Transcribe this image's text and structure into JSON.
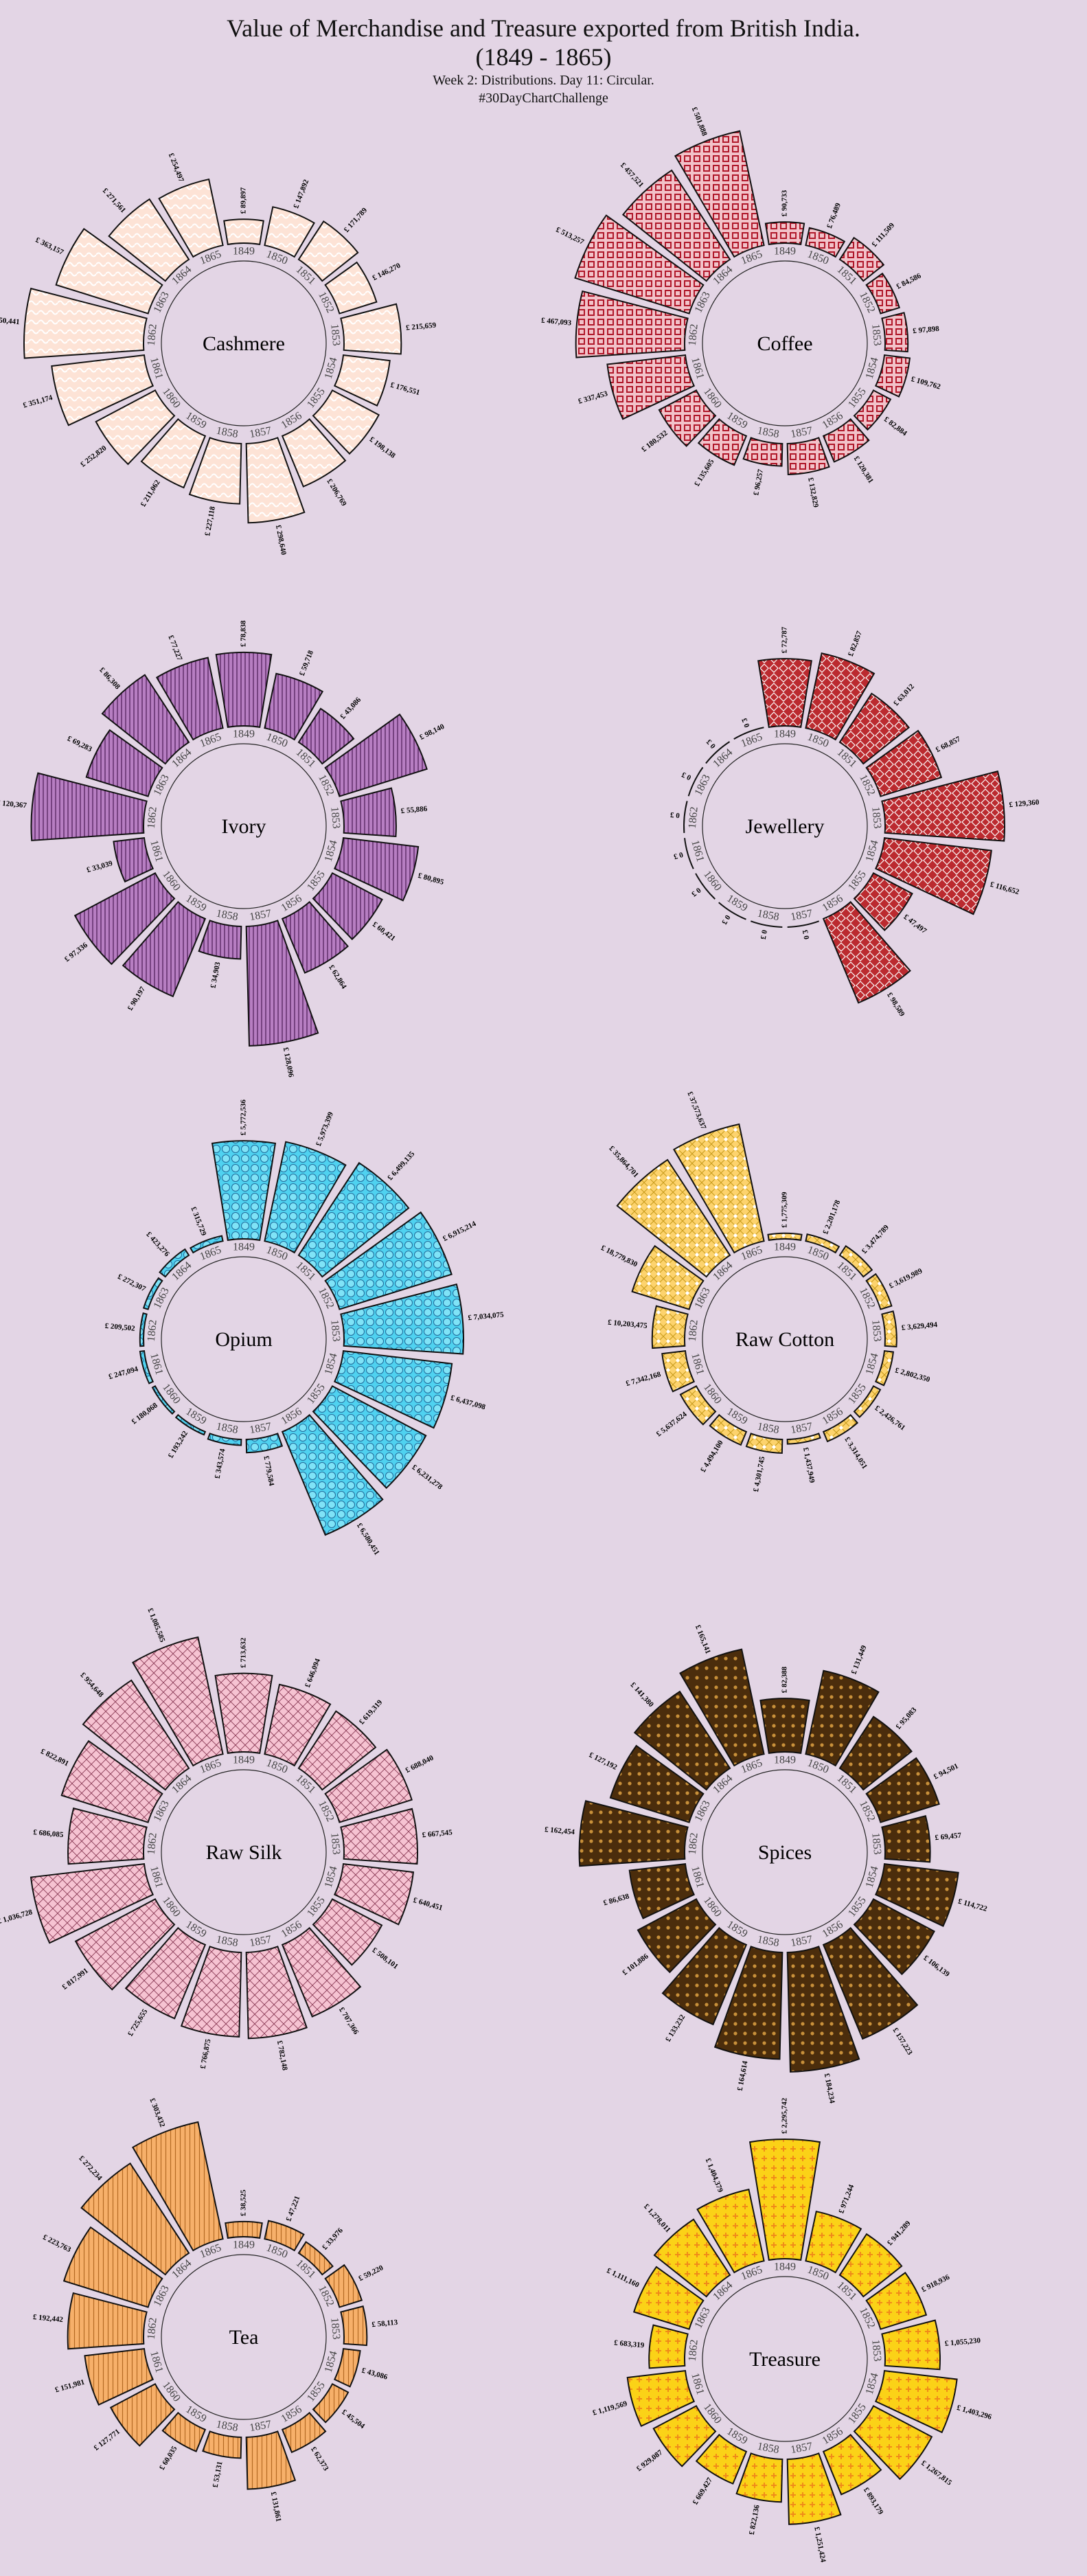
{
  "title": "Value of Merchandise and Treasure exported from British India.",
  "date_range": "(1849 - 1865)",
  "subtitle_line1": "Week 2: Distributions. Day 11: Circular.",
  "subtitle_line2": "#30DayChartChallenge",
  "colors": {
    "background": "#e3d5e5",
    "Cashmere": "#fde3d6",
    "Coffee": "#f2c2c9",
    "Ivory": "#b77ec2",
    "Jewellery": "#bb2a2f",
    "Opium": "#4fd2f0",
    "Raw Cotton": "#fdd36d",
    "Raw Silk": "#f6c3d2",
    "Spices": "#4b2d0c",
    "Tea": "#f7b06a",
    "Treasure": "#fbd217"
  },
  "chart_data": [
    {
      "type": "bar",
      "name": "Cashmere",
      "pattern": "waves",
      "categories": [
        "1849",
        "1850",
        "1851",
        "1852",
        "1853",
        "1854",
        "1855",
        "1856",
        "1857",
        "1858",
        "1859",
        "1860",
        "1861",
        "1862",
        "1863",
        "1864",
        "1865"
      ],
      "values": [
        89897,
        147892,
        171789,
        146270,
        215659,
        176551,
        198138,
        206769,
        298640,
        227118,
        211062,
        252820,
        351174,
        450441,
        363157,
        271561,
        254497
      ],
      "labels": [
        "£ 89,897",
        "£ 147,892",
        "£ 171,789",
        "£ 146,270",
        "£ 215,659",
        "£ 176,551",
        "£ 198,138",
        "£ 206,769",
        "£ 298,640",
        "£ 227,118",
        "£ 211,062",
        "£ 252,820",
        "£ 351,174",
        "£ 450,441",
        "£ 363,157",
        "£ 271,561",
        "£ 254,497"
      ]
    },
    {
      "type": "bar",
      "name": "Coffee",
      "pattern": "squares",
      "categories": [
        "1849",
        "1850",
        "1851",
        "1852",
        "1853",
        "1854",
        "1855",
        "1856",
        "1857",
        "1858",
        "1859",
        "1860",
        "1861",
        "1862",
        "1863",
        "1864",
        "1865"
      ],
      "values": [
        90733,
        76489,
        111509,
        84586,
        97898,
        109762,
        82884,
        120381,
        132829,
        96257,
        135605,
        180532,
        337453,
        467093,
        513257,
        457521,
        501888
      ],
      "labels": [
        "£ 90,733",
        "£ 76,489",
        "£ 111,509",
        "£ 84,586",
        "£ 97,898",
        "£ 109,762",
        "£ 82,884",
        "£ 120,381",
        "£ 132,829",
        "£ 96,257",
        "£ 135,605",
        "£ 180,532",
        "£ 337,453",
        "£ 467,093",
        "£ 513,257",
        "£ 457,521",
        "£ 501,888"
      ]
    },
    {
      "type": "bar",
      "name": "Ivory",
      "pattern": "stripes",
      "categories": [
        "1849",
        "1850",
        "1851",
        "1852",
        "1853",
        "1854",
        "1855",
        "1856",
        "1857",
        "1858",
        "1859",
        "1860",
        "1861",
        "1862",
        "1863",
        "1864",
        "1865"
      ],
      "values": [
        78838,
        59718,
        43086,
        98140,
        55886,
        80895,
        60421,
        62864,
        128096,
        34903,
        90197,
        97336,
        33039,
        120367,
        69283,
        86308,
        77227
      ],
      "labels": [
        "£ 78,838",
        "£ 59,718",
        "£ 43,086",
        "£ 98,140",
        "£ 55,886",
        "£ 80,895",
        "£ 60,421",
        "£ 62,864",
        "£ 128,096",
        "£ 34,903",
        "£ 90,197",
        "£ 97,336",
        "£ 33,039",
        "£ 120,367",
        "£ 69,283",
        "£ 86,308",
        "£ 77,227"
      ]
    },
    {
      "type": "bar",
      "name": "Jewellery",
      "pattern": "diamonds",
      "categories": [
        "1849",
        "1850",
        "1851",
        "1852",
        "1853",
        "1854",
        "1855",
        "1856",
        "1857",
        "1858",
        "1859",
        "1860",
        "1861",
        "1862",
        "1863",
        "1864",
        "1865"
      ],
      "values": [
        72787,
        82857,
        63012,
        68857,
        129360,
        116652,
        47497,
        98589,
        0,
        0,
        0,
        0,
        0,
        0,
        0,
        0,
        0
      ],
      "labels": [
        "£ 72,787",
        "£ 82,857",
        "£ 63,012",
        "£ 68,857",
        "£ 129,360",
        "£ 116,652",
        "£ 47,497",
        "£ 98,589",
        "£ 0",
        "£ 0",
        "£ 0",
        "£ 0",
        "£ 0",
        "£ 0",
        "£ 0",
        "£ 0",
        "£ 0"
      ]
    },
    {
      "type": "bar",
      "name": "Opium",
      "pattern": "circles",
      "categories": [
        "1849",
        "1850",
        "1851",
        "1852",
        "1853",
        "1854",
        "1855",
        "1856",
        "1857",
        "1858",
        "1859",
        "1860",
        "1861",
        "1862",
        "1863",
        "1864",
        "1865"
      ],
      "values": [
        5772536,
        5973399,
        6499135,
        6915214,
        7034075,
        6437098,
        6231278,
        6580451,
        779584,
        343574,
        193242,
        180068,
        247094,
        209502,
        272307,
        423276,
        315729
      ],
      "labels": [
        "£ 5,772,536",
        "£ 5,973,399",
        "£ 6,499,135",
        "£ 6,915,214",
        "£ 7,034,075",
        "£ 6,437,098",
        "£ 6,231,278",
        "£ 6,580,451",
        "£ 779,584",
        "£ 343,574",
        "£ 193,242",
        "£ 180,068",
        "£ 247,094",
        "£ 209,502",
        "£ 272,307",
        "£ 423,276",
        "£ 315,729"
      ]
    },
    {
      "type": "bar",
      "name": "Raw Cotton",
      "pattern": "grid-dots",
      "categories": [
        "1849",
        "1850",
        "1851",
        "1852",
        "1853",
        "1854",
        "1855",
        "1856",
        "1857",
        "1858",
        "1859",
        "1860",
        "1861",
        "1862",
        "1863",
        "1864",
        "1865"
      ],
      "values": [
        1775309,
        2201178,
        3474789,
        3619989,
        3629494,
        2802350,
        2426761,
        3314051,
        1437949,
        4301745,
        4494100,
        5637624,
        7342168,
        10203475,
        18779830,
        35864701,
        37573637
      ],
      "labels": [
        "£ 1,775,309",
        "£ 2,201,178",
        "£ 3,474,789",
        "£ 3,619,989",
        "£ 3,629,494",
        "£ 2,802,350",
        "£ 2,426,761",
        "£ 3,314,051",
        "£ 1,437,949",
        "£ 4,301,745",
        "£ 4,494,100",
        "£ 5,637,624",
        "£ 7,342,168",
        "£ 10,203,475",
        "£ 18,779,830",
        "£ 35,864,701",
        "£ 37,573,637"
      ]
    },
    {
      "type": "bar",
      "name": "Raw Silk",
      "pattern": "crosshatch",
      "categories": [
        "1849",
        "1850",
        "1851",
        "1852",
        "1853",
        "1854",
        "1855",
        "1856",
        "1857",
        "1858",
        "1859",
        "1860",
        "1861",
        "1862",
        "1863",
        "1864",
        "1865"
      ],
      "values": [
        713632,
        646094,
        619319,
        688040,
        667545,
        640451,
        508101,
        707366,
        782148,
        766875,
        725655,
        817991,
        1036728,
        686085,
        822891,
        954648,
        1085585
      ],
      "labels": [
        "£ 713,632",
        "£ 646,094",
        "£ 619,319",
        "£ 688,040",
        "£ 667,545",
        "£ 640,451",
        "£ 508,101",
        "£ 707,366",
        "£ 782,148",
        "£ 766,875",
        "£ 725,655",
        "£ 817,991",
        "£ 1,036,728",
        "£ 686,085",
        "£ 822,891",
        "£ 954,648",
        "£ 1,085,585"
      ]
    },
    {
      "type": "bar",
      "name": "Spices",
      "pattern": "dots",
      "categories": [
        "1849",
        "1850",
        "1851",
        "1852",
        "1853",
        "1854",
        "1855",
        "1856",
        "1857",
        "1858",
        "1859",
        "1860",
        "1861",
        "1862",
        "1863",
        "1864",
        "1865"
      ],
      "values": [
        82388,
        131449,
        95083,
        94501,
        69457,
        114722,
        106139,
        157223,
        184234,
        164614,
        133232,
        101886,
        86638,
        162454,
        127192,
        141380,
        165141
      ],
      "labels": [
        "£ 82,388",
        "£ 131,449",
        "£ 95,083",
        "£ 94,501",
        "£ 69,457",
        "£ 114,722",
        "£ 106,139",
        "£ 157,223",
        "£ 184,234",
        "£ 164,614",
        "£ 133,232",
        "£ 101,886",
        "£ 86,638",
        "£ 162,454",
        "£ 127,192",
        "£ 141,380",
        "£ 165,141"
      ]
    },
    {
      "type": "bar",
      "name": "Tea",
      "pattern": "vstripes",
      "categories": [
        "1849",
        "1850",
        "1851",
        "1852",
        "1853",
        "1854",
        "1855",
        "1856",
        "1857",
        "1858",
        "1859",
        "1860",
        "1861",
        "1862",
        "1863",
        "1864",
        "1865"
      ],
      "values": [
        38525,
        47221,
        33976,
        59220,
        58113,
        43086,
        45504,
        62373,
        131861,
        53131,
        60035,
        127771,
        151981,
        192442,
        223763,
        272234,
        303432
      ],
      "labels": [
        "£ 38,525",
        "£ 47,221",
        "£ 33,976",
        "£ 59,220",
        "£ 58,113",
        "£ 43,086",
        "£ 45,504",
        "£ 62,373",
        "£ 131,861",
        "£ 53,131",
        "£ 60,035",
        "£ 127,771",
        "£ 151,981",
        "£ 192,442",
        "£ 223,763",
        "£ 272,234",
        "£ 303,432"
      ]
    },
    {
      "type": "bar",
      "name": "Treasure",
      "pattern": "plus",
      "categories": [
        "1849",
        "1850",
        "1851",
        "1852",
        "1853",
        "1854",
        "1855",
        "1856",
        "1857",
        "1858",
        "1859",
        "1860",
        "1861",
        "1862",
        "1863",
        "1864",
        "1865"
      ],
      "values": [
        2295742,
        971244,
        941289,
        918936,
        1055230,
        1403296,
        1267815,
        893179,
        1251424,
        822136,
        669427,
        929087,
        1119569,
        683319,
        1111160,
        1278011,
        1404379
      ],
      "labels": [
        "£ 2,295,742",
        "£ 971,244",
        "£ 941,289",
        "£ 918,936",
        "£ 1,055,230",
        "£ 1,403,296",
        "£ 1,267,815",
        "£ 893,179",
        "£ 1,251,424",
        "£ 822,136",
        "£ 669,427",
        "£ 929,087",
        "£ 1,119,569",
        "£ 683,319",
        "£ 1,111,160",
        "£ 1,278,011",
        "£ 1,404,379"
      ]
    }
  ]
}
